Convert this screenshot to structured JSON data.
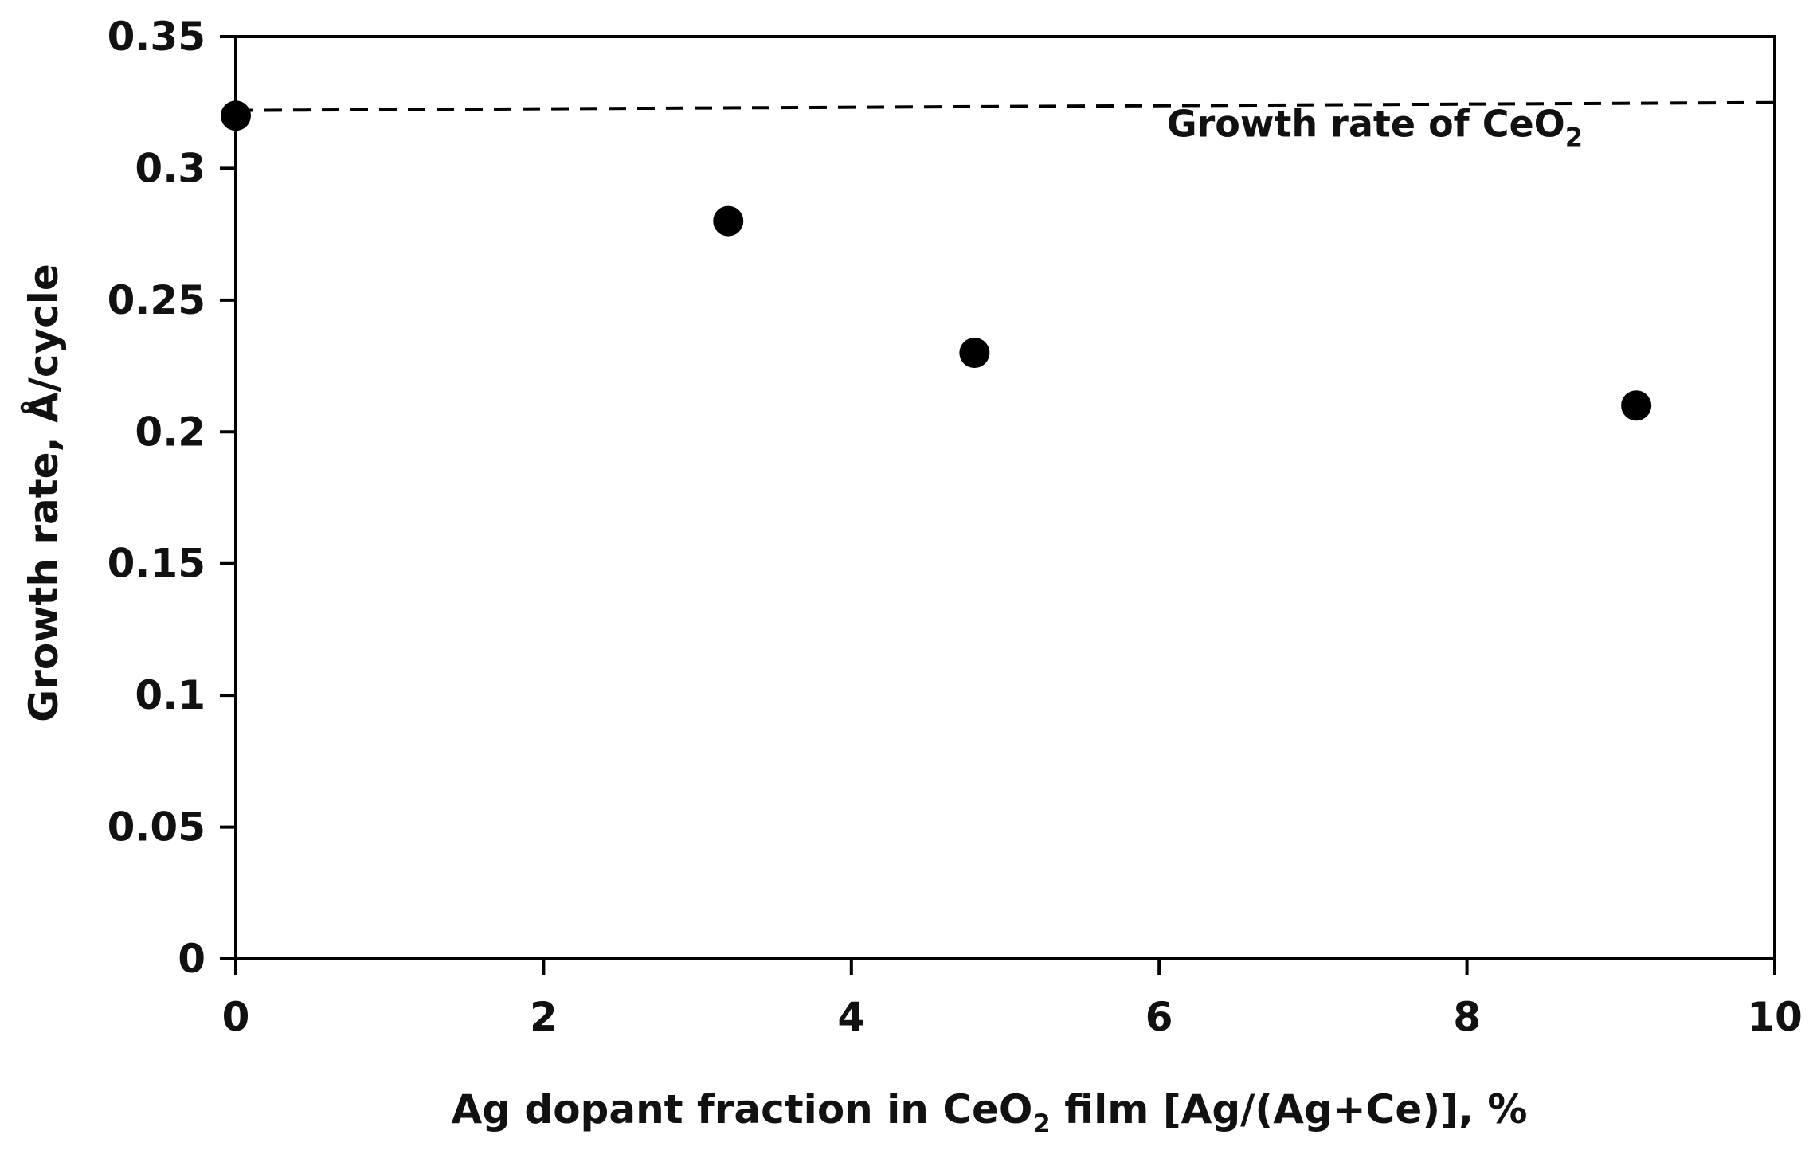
{
  "chart_data": {
    "type": "scatter",
    "title": "",
    "xlabel": {
      "before": "Ag dopant fraction in CeO",
      "subscript": "2",
      "after": " film [Ag/(Ag+Ce)], %"
    },
    "ylabel": "Growth rate, Å/cycle",
    "xlim": [
      0,
      10
    ],
    "ylim": [
      0,
      0.35
    ],
    "x_ticks": [
      "0",
      "2",
      "4",
      "6",
      "8",
      "10"
    ],
    "y_ticks": [
      "0",
      "0.05",
      "0.1",
      "0.15",
      "0.2",
      "0.25",
      "0.3",
      "0.35"
    ],
    "grid": false,
    "legend": "none",
    "points": [
      {
        "x": 0,
        "y": 0.32
      },
      {
        "x": 3.2,
        "y": 0.28
      },
      {
        "x": 4.8,
        "y": 0.23
      },
      {
        "x": 9.1,
        "y": 0.21
      }
    ],
    "reference_line": {
      "style": "dashed",
      "x": [
        0,
        10
      ],
      "y": [
        0.322,
        0.325
      ],
      "label": {
        "before": "Growth rate of CeO",
        "subscript": "2",
        "after": ""
      },
      "label_x": 6.05,
      "label_y": 0.312
    },
    "colors": {
      "marker": "#000000",
      "line": "#000000",
      "axis": "#000000"
    }
  }
}
